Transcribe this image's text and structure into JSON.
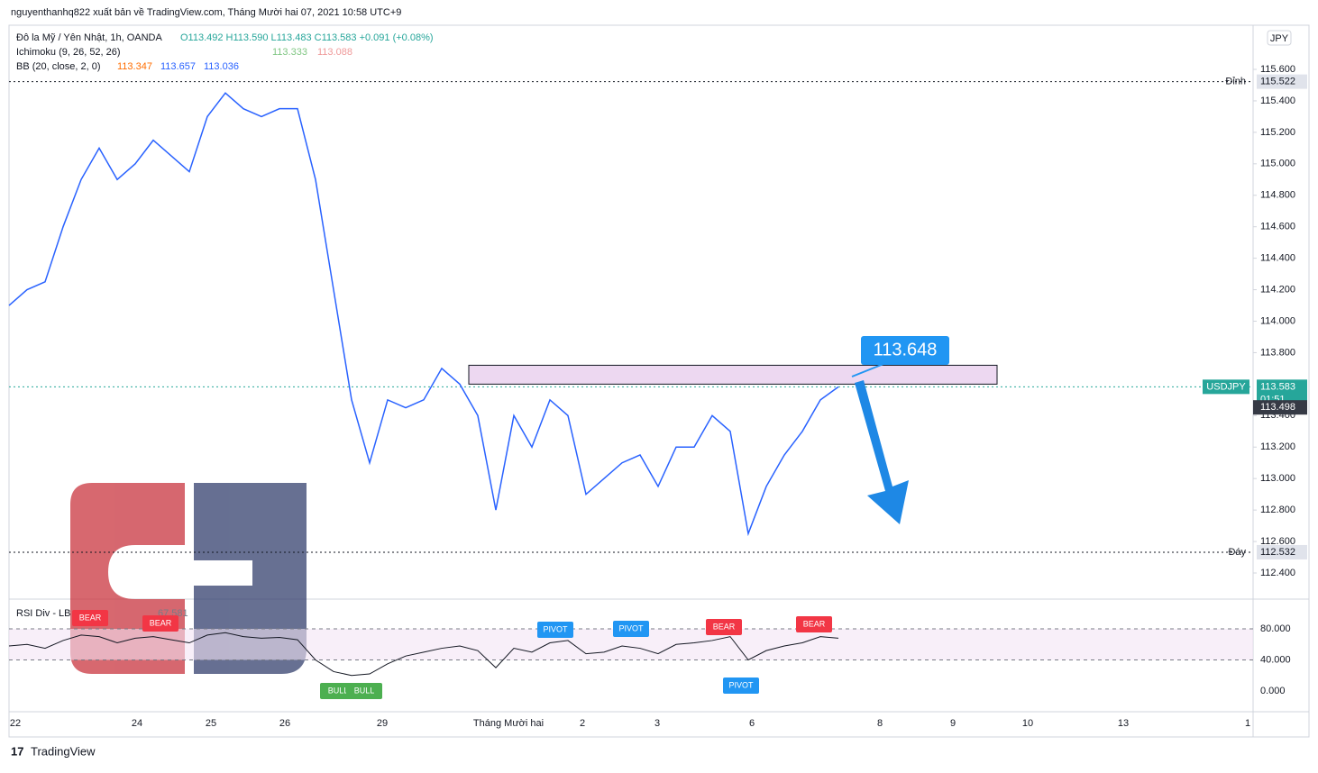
{
  "header": {
    "publisher": "nguyenthanhq822 xuất bản về TradingView.com, Tháng Mười hai 07, 2021 10:58 UTC+9"
  },
  "legend": {
    "symbol": "Đô la Mỹ / Yên Nhật, 1h, OANDA",
    "ohlc": "O113.492 H113.590 L113.483 C113.583 +0.091 (+0.08%)",
    "ichimoku": "Ichimoku (9, 26, 52, 26)",
    "ichimoku_values": [
      "113.333",
      "113.088"
    ],
    "bb": "BB (20, close, 2, 0)",
    "bb_values": [
      "113.347",
      "113.657",
      "113.036"
    ]
  },
  "currency": "JPY",
  "price_ticks": [
    {
      "value": 115.6,
      "label": "115.600"
    },
    {
      "value": 115.4,
      "label": "115.400"
    },
    {
      "value": 115.2,
      "label": "115.200"
    },
    {
      "value": 115,
      "label": "115.000"
    },
    {
      "value": 114.8,
      "label": "114.800"
    },
    {
      "value": 114.6,
      "label": "114.600"
    },
    {
      "value": 114.4,
      "label": "114.400"
    },
    {
      "value": 114.2,
      "label": "114.200"
    },
    {
      "value": 114,
      "label": "114.000"
    },
    {
      "value": 113.8,
      "label": "113.800"
    },
    {
      "value": 113.4,
      "label": "113.400"
    },
    {
      "value": 113.2,
      "label": "113.200"
    },
    {
      "value": 113,
      "label": "113.000"
    },
    {
      "value": 112.8,
      "label": "112.800"
    },
    {
      "value": 112.6,
      "label": "112.600"
    },
    {
      "value": 112.4,
      "label": "112.400"
    }
  ],
  "levels": {
    "high": {
      "name": "Đỉnh",
      "value": 115.522,
      "label": "115.522"
    },
    "low": {
      "name": "Đáy",
      "value": 112.532,
      "label": "112.532"
    },
    "last": {
      "name": "USDJPY",
      "value": 113.583,
      "label": "113.583",
      "countdown": "01:51"
    },
    "mid": {
      "value": 113.498,
      "label": "113.498"
    }
  },
  "target": {
    "value": 113.648,
    "label": "113.648"
  },
  "zone": [
    113.6,
    113.72
  ],
  "price_series": {
    "color": "#2962ff",
    "values": [
      114.1,
      114.2,
      114.25,
      114.6,
      114.9,
      115.1,
      114.9,
      115.0,
      115.15,
      115.05,
      114.95,
      115.3,
      115.45,
      115.35,
      115.3,
      115.35,
      115.35,
      114.9,
      114.2,
      113.5,
      113.1,
      113.5,
      113.45,
      113.5,
      113.7,
      113.6,
      113.4,
      112.8,
      113.4,
      113.2,
      113.5,
      113.4,
      112.9,
      113.0,
      113.1,
      113.15,
      112.95,
      113.2,
      113.2,
      113.4,
      113.3,
      112.65,
      112.95,
      113.15,
      113.3,
      113.5,
      113.583
    ]
  },
  "rsi": {
    "title": "RSI Div - LB",
    "value": "67.581",
    "ticks": [
      {
        "value": 80,
        "label": "80.000"
      },
      {
        "value": 40,
        "label": "40.000"
      },
      {
        "value": 0,
        "label": "0.000"
      }
    ],
    "values": [
      58,
      60,
      55,
      65,
      72,
      70,
      62,
      68,
      70,
      66,
      62,
      72,
      75,
      70,
      68,
      69,
      66,
      40,
      25,
      20,
      22,
      35,
      45,
      50,
      55,
      58,
      52,
      30,
      55,
      50,
      62,
      65,
      48,
      50,
      58,
      55,
      48,
      60,
      62,
      65,
      70,
      40,
      52,
      58,
      62,
      70,
      68
    ],
    "markers": [
      {
        "label": "BEAR",
        "color": "#f23645"
      },
      {
        "label": "BEAR",
        "color": "#f23645"
      },
      {
        "label": "BULL",
        "color": "#4caf50"
      },
      {
        "label": "BULL",
        "color": "#4caf50"
      },
      {
        "label": "PIVOT",
        "color": "#2196f3"
      },
      {
        "label": "PIVOT",
        "color": "#2196f3"
      },
      {
        "label": "BEAR",
        "color": "#f23645"
      },
      {
        "label": "PIVOT",
        "color": "#2196f3"
      },
      {
        "label": "BEAR",
        "color": "#f23645"
      }
    ]
  },
  "time_ticks": [
    "22",
    "24",
    "25",
    "26",
    "29",
    "Tháng Mười hai",
    "2",
    "3",
    "6",
    "8",
    "9",
    "10",
    "13",
    "1"
  ],
  "footer": {
    "brand": "TradingView"
  }
}
